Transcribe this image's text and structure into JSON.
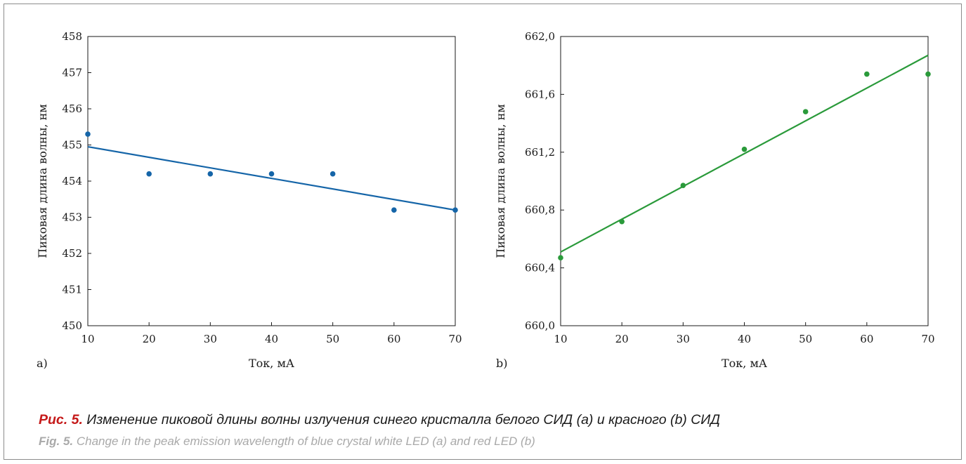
{
  "chart_data": [
    {
      "panel": "a)",
      "type": "scatter",
      "xlabel": "Ток, мА",
      "ylabel": "Пиковая длина волны, нм",
      "xlim": [
        10,
        70
      ],
      "ylim": [
        450,
        458
      ],
      "xticks": [
        10,
        20,
        30,
        40,
        50,
        60,
        70
      ],
      "yticks": [
        "450",
        "451",
        "452",
        "453",
        "454",
        "455",
        "456",
        "457",
        "458"
      ],
      "grid": false,
      "color": "#1565a8",
      "points": [
        {
          "x": 10,
          "y": 455.3
        },
        {
          "x": 20,
          "y": 454.2
        },
        {
          "x": 30,
          "y": 454.2
        },
        {
          "x": 40,
          "y": 454.2
        },
        {
          "x": 50,
          "y": 454.2
        },
        {
          "x": 60,
          "y": 453.2
        },
        {
          "x": 70,
          "y": 453.2
        }
      ],
      "trendline": [
        {
          "x": 10,
          "y": 454.95
        },
        {
          "x": 70,
          "y": 453.2
        }
      ]
    },
    {
      "panel": "b)",
      "type": "scatter",
      "xlabel": "Ток, мА",
      "ylabel": "Пиковая длина волны, нм",
      "xlim": [
        10,
        70
      ],
      "ylim": [
        660.0,
        662.0
      ],
      "xticks": [
        10,
        20,
        30,
        40,
        50,
        60,
        70
      ],
      "yticks": [
        "660,0",
        "660,4",
        "660,8",
        "661,2",
        "661,6",
        "662,0"
      ],
      "grid": false,
      "color": "#2a9a3a",
      "points": [
        {
          "x": 10,
          "y": 660.47
        },
        {
          "x": 20,
          "y": 660.72
        },
        {
          "x": 30,
          "y": 660.97
        },
        {
          "x": 40,
          "y": 661.22
        },
        {
          "x": 50,
          "y": 661.48
        },
        {
          "x": 60,
          "y": 661.74
        },
        {
          "x": 70,
          "y": 661.74
        }
      ],
      "trendline": [
        {
          "x": 10,
          "y": 660.51
        },
        {
          "x": 70,
          "y": 661.87
        }
      ]
    }
  ],
  "caption": {
    "ru_label": "Рис. 5.",
    "ru_text": " Изменение пиковой длины волны излучения синего кристалла белого СИД (a) и красного (b) СИД",
    "en_label": "Fig. 5.",
    "en_text": " Change in the peak emission wavelength of blue crystal white LED (a) and red LED (b)"
  }
}
